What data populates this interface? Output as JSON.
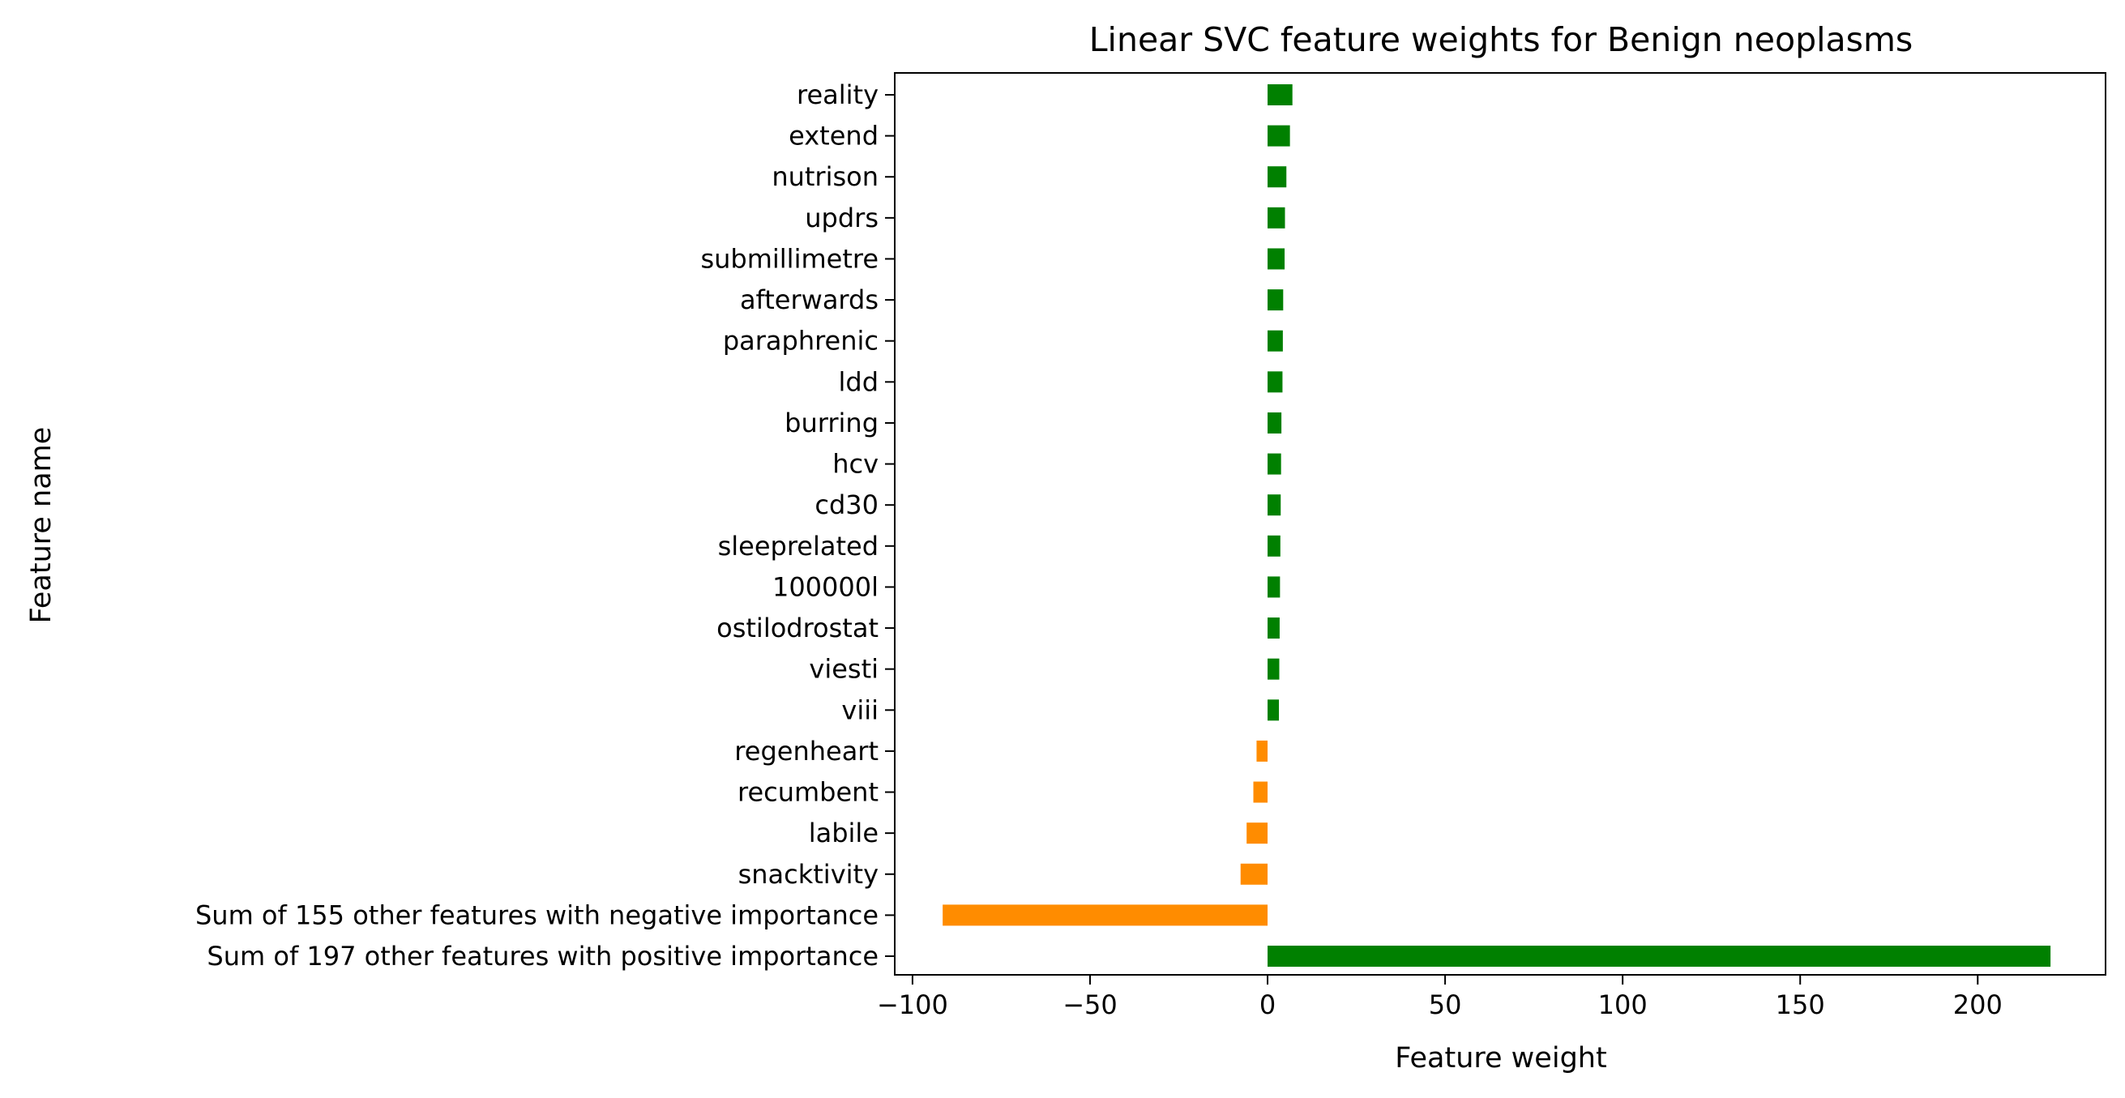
{
  "chart_data": {
    "type": "bar",
    "orientation": "horizontal",
    "title": "Linear SVC feature weights for Benign neoplasms",
    "xlabel": "Feature weight",
    "ylabel": "Feature name",
    "xlim": [
      -105,
      236
    ],
    "xticks": [
      -100,
      -50,
      0,
      50,
      100,
      150,
      200
    ],
    "xtick_labels": [
      "−100",
      "−50",
      "0",
      "50",
      "100",
      "150",
      "200"
    ],
    "grid": false,
    "colors": {
      "positive": "#008000",
      "negative": "#ff8c00"
    },
    "categories": [
      "reality",
      "extend",
      "nutrison",
      "updrs",
      "submillimetre",
      "afterwards",
      "paraphrenic",
      "ldd",
      "burring",
      "hcv",
      "cd30",
      "sleeprelated",
      "100000l",
      "ostilodrostat",
      "viesti",
      "viii",
      "regenheart",
      "recumbent",
      "labile",
      "snacktivity",
      "Sum of 155 other features with negative importance",
      "Sum of 197 other features with positive importance"
    ],
    "values": [
      7.0,
      6.3,
      5.3,
      4.9,
      4.8,
      4.4,
      4.3,
      4.2,
      3.9,
      3.8,
      3.7,
      3.6,
      3.5,
      3.4,
      3.3,
      3.2,
      -3.1,
      -4.0,
      -5.9,
      -7.6,
      -91.5,
      220.5
    ]
  }
}
